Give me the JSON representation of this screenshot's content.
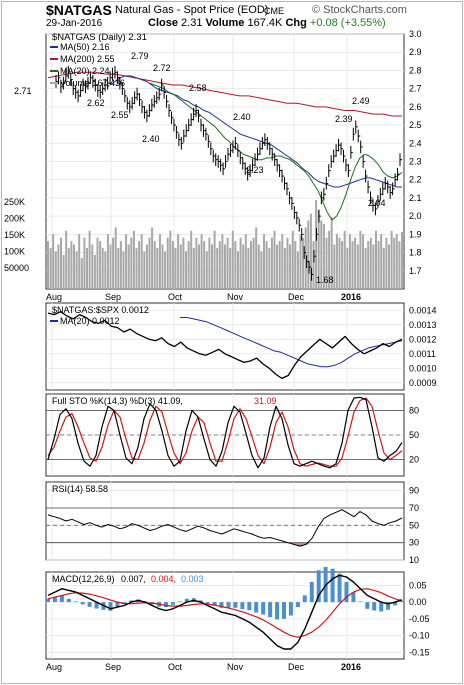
{
  "header": {
    "symbol": "$NATGAS",
    "name": "Natural Gas - Spot Price (EOD)",
    "exchange": "CME",
    "copyright": "© StockCharts.com",
    "date": "29-Jan-2016",
    "close_label": "Close",
    "close": "2.31",
    "volume_label": "Volume",
    "volume": "167.4K",
    "chg_label": "Chg",
    "chg": "+0.08 (+3.55%)"
  },
  "months": [
    "Aug",
    "Sep",
    "Oct",
    "Nov",
    "Dec",
    "2016"
  ],
  "colors": {
    "price": "#000000",
    "ma50": "#1f2f99",
    "ma200": "#b0192c",
    "ma20": "#1f6f1f",
    "volume": "#a8a8a8",
    "k": "#000000",
    "d": "#d01818",
    "hist": "#4a90d0",
    "rsi_fill": "#b07070",
    "grid": "#e4e4e4"
  },
  "chart_data": [
    {
      "id": "price",
      "type": "line",
      "title": "$NATGAS (Daily) 2.31",
      "ylim": [
        1.6,
        3.0
      ],
      "ticks": [
        "3.0",
        "2.9",
        "2.8",
        "2.7",
        "2.6",
        "2.5",
        "2.4",
        "2.3",
        "2.2",
        "2.1",
        "2.0",
        "1.9",
        "1.8",
        "1.7"
      ],
      "legend": [
        {
          "name": "MA(50)",
          "value": "2.16"
        },
        {
          "name": "MA(200)",
          "value": "2.55"
        },
        {
          "name": "MA(20)",
          "value": "2.24"
        },
        {
          "name": "Volume",
          "value": "167,436"
        }
      ],
      "series": [
        {
          "name": "$NATGAS",
          "values": [
            2.74,
            2.76,
            2.71,
            2.73,
            2.77,
            2.79,
            2.75,
            2.7,
            2.68,
            2.66,
            2.69,
            2.72,
            2.71,
            2.73,
            2.76,
            2.74,
            2.72,
            2.69,
            2.68,
            2.7,
            2.72,
            2.73,
            2.76,
            2.78,
            2.79,
            2.76,
            2.73,
            2.7,
            2.66,
            2.62,
            2.6,
            2.62,
            2.65,
            2.67,
            2.64,
            2.6,
            2.57,
            2.55,
            2.58,
            2.61,
            2.63,
            2.65,
            2.67,
            2.72,
            2.68,
            2.63,
            2.58,
            2.54,
            2.5,
            2.46,
            2.42,
            2.4,
            2.44,
            2.47,
            2.5,
            2.53,
            2.56,
            2.58,
            2.55,
            2.5,
            2.47,
            2.45,
            2.41,
            2.37,
            2.33,
            2.31,
            2.3,
            2.28,
            2.26,
            2.3,
            2.34,
            2.36,
            2.38,
            2.4,
            2.36,
            2.32,
            2.29,
            2.26,
            2.23,
            2.25,
            2.28,
            2.31,
            2.34,
            2.37,
            2.4,
            2.42,
            2.4,
            2.37,
            2.34,
            2.31,
            2.28,
            2.25,
            2.22,
            2.18,
            2.15,
            2.1,
            2.07,
            2.02,
            1.99,
            1.95,
            1.9,
            1.8,
            1.75,
            1.72,
            1.68,
            1.78,
            1.9,
            2.0,
            2.1,
            2.12,
            2.18,
            2.25,
            2.3,
            2.33,
            2.36,
            2.39,
            2.37,
            2.33,
            2.28,
            2.25,
            2.35,
            2.45,
            2.49,
            2.44,
            2.38,
            2.3,
            2.22,
            2.16,
            2.1,
            2.06,
            2.04,
            2.08,
            2.12,
            2.15,
            2.18,
            2.16,
            2.13,
            2.15,
            2.2,
            2.23,
            2.31
          ]
        },
        {
          "name": "MA(50)",
          "values": [
            2.72,
            2.74,
            2.76,
            2.77,
            2.77,
            2.76,
            2.75,
            2.74,
            2.72,
            2.7,
            2.69,
            2.68,
            2.67,
            2.66,
            2.64,
            2.63,
            2.61,
            2.6,
            2.58,
            2.57,
            2.55,
            2.53,
            2.51,
            2.49,
            2.47,
            2.45,
            2.44,
            2.43,
            2.42,
            2.41,
            2.4,
            2.39,
            2.37,
            2.35,
            2.33,
            2.31,
            2.29,
            2.26,
            2.24,
            2.21,
            2.19,
            2.18,
            2.17,
            2.16,
            2.16,
            2.17,
            2.18,
            2.19,
            2.2,
            2.21,
            2.21,
            2.2,
            2.19,
            2.18,
            2.17,
            2.16,
            2.16
          ]
        },
        {
          "name": "MA(200)",
          "values": [
            2.76,
            2.77,
            2.78,
            2.79,
            2.79,
            2.79,
            2.78,
            2.78,
            2.77,
            2.76,
            2.75,
            2.74,
            2.73,
            2.72,
            2.72,
            2.71,
            2.7,
            2.69,
            2.68,
            2.67,
            2.66,
            2.66,
            2.65,
            2.64,
            2.63,
            2.62,
            2.62,
            2.61,
            2.6,
            2.6,
            2.59,
            2.58,
            2.58,
            2.57,
            2.56,
            2.56,
            2.55,
            2.55
          ]
        },
        {
          "name": "MA(20)",
          "values": [
            2.73,
            2.72,
            2.71,
            2.7,
            2.68,
            2.67,
            2.65,
            2.63,
            2.61,
            2.59,
            2.57,
            2.55,
            2.53,
            2.51,
            2.49,
            2.46,
            2.43,
            2.41,
            2.38,
            2.36,
            2.34,
            2.33,
            2.32,
            2.31,
            2.31,
            2.32,
            2.32,
            2.33,
            2.33,
            2.32,
            2.31,
            2.29,
            2.27,
            2.25,
            2.22,
            2.18,
            2.14,
            2.08,
            2.02,
            1.98,
            2.0,
            2.05,
            2.12,
            2.2,
            2.27,
            2.32,
            2.34,
            2.33,
            2.31,
            2.28,
            2.24,
            2.22,
            2.21,
            2.22,
            2.24
          ]
        },
        {
          "name": "Volume",
          "values": [
            140,
            120,
            160,
            110,
            130,
            150,
            100,
            170,
            120,
            140,
            130,
            110,
            160,
            90,
            150,
            120,
            170,
            130,
            100,
            150,
            140,
            120,
            110,
            160,
            130,
            150,
            180,
            120,
            140,
            110,
            160,
            130,
            150,
            170,
            120,
            140,
            160,
            110,
            130,
            150,
            180,
            140,
            120,
            160,
            130,
            110,
            150,
            170,
            140,
            120,
            160,
            130,
            150,
            110,
            140,
            170,
            120,
            150,
            130,
            160,
            140,
            110,
            150,
            130,
            170,
            120,
            140,
            160,
            130,
            150,
            120,
            170,
            140,
            110,
            150,
            130,
            160,
            120,
            140,
            150,
            180,
            130,
            110,
            160,
            140,
            120,
            150,
            170,
            130,
            140,
            160,
            120,
            150,
            130,
            170,
            140,
            110,
            160,
            150,
            180,
            200,
            220,
            140,
            260,
            230,
            200,
            190,
            150,
            170,
            210,
            130,
            160,
            150,
            140,
            170,
            120,
            160,
            140,
            150,
            130,
            170,
            160,
            120,
            140,
            150,
            130,
            170,
            140,
            160,
            120,
            150,
            130,
            170,
            150,
            160,
            140,
            167
          ]
        }
      ],
      "annotations": [
        "2.71",
        "2.79",
        "2.72",
        "2.62",
        "2.55",
        "2.58",
        "2.40",
        "2.40",
        "2.23",
        "2.39",
        "2.49",
        "2.04",
        "1.68"
      ],
      "volume_ticks": [
        "250K",
        "200K",
        "150K",
        "100K",
        "50000"
      ]
    },
    {
      "id": "ratio",
      "type": "line",
      "title": "$NATGAS:$SPX 0.0012",
      "ylim": [
        0.00085,
        0.00145
      ],
      "ticks": [
        "0.0014",
        "0.0013",
        "0.0012",
        "0.0011",
        "0.0010",
        "0.0009"
      ],
      "legend": [
        {
          "name": "MA(20)",
          "value": "0.0012"
        }
      ],
      "series": [
        {
          "name": "$NATGAS:$SPX",
          "values": [
            0.00138,
            0.00137,
            0.00139,
            0.00136,
            0.00134,
            0.00137,
            0.00135,
            0.00132,
            0.00131,
            0.00133,
            0.00129,
            0.00128,
            0.00125,
            0.00127,
            0.00124,
            0.00122,
            0.0012,
            0.00119,
            0.00121,
            0.00117,
            0.00115,
            0.00118,
            0.00114,
            0.00112,
            0.0011,
            0.00109,
            0.00111,
            0.00113,
            0.0011,
            0.00108,
            0.00106,
            0.00104,
            0.00105,
            0.00107,
            0.00103,
            0.001,
            0.00096,
            0.00093,
            0.00095,
            0.00102,
            0.00108,
            0.00112,
            0.00116,
            0.0012,
            0.00117,
            0.00114,
            0.00118,
            0.00122,
            0.00117,
            0.00113,
            0.0011,
            0.00112,
            0.00114,
            0.00117,
            0.00115,
            0.00118,
            0.0012
          ]
        },
        {
          "name": "MA(20)",
          "values": [
            0.00135,
            0.00135,
            0.00134,
            0.00133,
            0.00132,
            0.0013,
            0.00128,
            0.00126,
            0.00124,
            0.00122,
            0.0012,
            0.00118,
            0.00116,
            0.00114,
            0.00112,
            0.00111,
            0.00109,
            0.00107,
            0.00105,
            0.00103,
            0.00102,
            0.00101,
            0.00101,
            0.00102,
            0.00104,
            0.00107,
            0.0011,
            0.00112,
            0.00114,
            0.00115,
            0.00116,
            0.00117,
            0.00118,
            0.00119
          ]
        }
      ]
    },
    {
      "id": "stoch",
      "type": "line",
      "title": "Full STO %K(14,3) %D(3)",
      "ylim": [
        0,
        100
      ],
      "ticks": [
        "80",
        "50",
        "20"
      ],
      "legend": [
        {
          "name": "%K",
          "value": "41.09"
        },
        {
          "name": "%D",
          "value": "31.09"
        }
      ],
      "series": [
        {
          "name": "%K",
          "values": [
            20,
            45,
            75,
            82,
            70,
            40,
            18,
            12,
            25,
            60,
            85,
            80,
            50,
            22,
            15,
            35,
            70,
            88,
            80,
            55,
            25,
            12,
            18,
            55,
            80,
            72,
            45,
            20,
            12,
            30,
            65,
            85,
            78,
            52,
            25,
            10,
            22,
            60,
            85,
            70,
            38,
            15,
            12,
            15,
            18,
            15,
            12,
            10,
            15,
            40,
            80,
            95,
            96,
            93,
            60,
            22,
            18,
            25,
            30,
            41
          ]
        },
        {
          "name": "%D",
          "values": [
            25,
            35,
            55,
            72,
            76,
            60,
            40,
            22,
            18,
            35,
            62,
            80,
            72,
            45,
            22,
            20,
            40,
            68,
            85,
            78,
            52,
            28,
            15,
            28,
            55,
            72,
            65,
            40,
            18,
            18,
            42,
            70,
            82,
            70,
            48,
            25,
            15,
            35,
            65,
            78,
            60,
            32,
            15,
            12,
            14,
            16,
            14,
            12,
            12,
            22,
            48,
            78,
            92,
            95,
            85,
            55,
            28,
            20,
            25,
            31
          ]
        }
      ]
    },
    {
      "id": "rsi",
      "type": "line",
      "title": "RSI(14) 58.58",
      "ylim": [
        10,
        100
      ],
      "ticks": [
        "90",
        "70",
        "50",
        "30",
        "10"
      ],
      "series": [
        {
          "name": "RSI(14)",
          "values": [
            62,
            60,
            58,
            55,
            57,
            54,
            51,
            53,
            50,
            48,
            51,
            49,
            46,
            48,
            52,
            50,
            47,
            44,
            46,
            49,
            51,
            48,
            45,
            43,
            46,
            49,
            47,
            44,
            42,
            40,
            43,
            46,
            44,
            42,
            40,
            37,
            35,
            36,
            34,
            32,
            30,
            28,
            26,
            28,
            35,
            48,
            58,
            62,
            65,
            68,
            64,
            60,
            66,
            62,
            55,
            52,
            50,
            53,
            55,
            58.58
          ]
        }
      ]
    },
    {
      "id": "macd",
      "type": "line",
      "title": "MACD(12,26,9)",
      "ylim": [
        -0.17,
        0.09
      ],
      "ticks": [
        "0.05",
        "0.00",
        "-0.05",
        "-0.10",
        "-0.15"
      ],
      "legend": [
        {
          "name": "MACD",
          "value": "0.007"
        },
        {
          "name": "Signal",
          "value": "0.004"
        },
        {
          "name": "Histogram",
          "value": "0.003"
        }
      ],
      "series": [
        {
          "name": "MACD",
          "values": [
            0.02,
            0.03,
            0.04,
            0.035,
            0.03,
            0.02,
            0.01,
            0.0,
            -0.01,
            -0.02,
            -0.015,
            -0.01,
            0.0,
            0.005,
            0.0,
            -0.01,
            -0.02,
            -0.025,
            -0.02,
            -0.01,
            0.0,
            0.005,
            0.0,
            -0.01,
            -0.02,
            -0.03,
            -0.035,
            -0.04,
            -0.05,
            -0.06,
            -0.075,
            -0.09,
            -0.11,
            -0.13,
            -0.14,
            -0.14,
            -0.12,
            -0.08,
            -0.03,
            0.02,
            0.05,
            0.07,
            0.08,
            0.075,
            0.06,
            0.04,
            0.02,
            0.01,
            0.0,
            -0.005,
            0.0,
            0.007
          ]
        },
        {
          "name": "Signal",
          "values": [
            0.01,
            0.015,
            0.02,
            0.025,
            0.028,
            0.027,
            0.024,
            0.019,
            0.013,
            0.006,
            0.0,
            -0.004,
            -0.005,
            -0.003,
            -0.002,
            -0.003,
            -0.006,
            -0.01,
            -0.012,
            -0.012,
            -0.01,
            -0.007,
            -0.005,
            -0.006,
            -0.009,
            -0.013,
            -0.018,
            -0.023,
            -0.029,
            -0.036,
            -0.044,
            -0.053,
            -0.065,
            -0.078,
            -0.09,
            -0.1,
            -0.105,
            -0.1,
            -0.09,
            -0.075,
            -0.055,
            -0.03,
            -0.005,
            0.015,
            0.03,
            0.038,
            0.04,
            0.035,
            0.028,
            0.018,
            0.01,
            0.004
          ]
        },
        {
          "name": "Histogram",
          "values": [
            0.01,
            0.015,
            0.02,
            0.01,
            0.002,
            -0.007,
            -0.014,
            -0.019,
            -0.023,
            -0.026,
            -0.015,
            -0.006,
            0.005,
            0.008,
            0.002,
            -0.007,
            -0.014,
            -0.015,
            -0.008,
            0.002,
            0.01,
            0.012,
            0.005,
            -0.004,
            -0.011,
            -0.017,
            -0.017,
            -0.017,
            -0.021,
            -0.024,
            -0.031,
            -0.037,
            -0.045,
            -0.052,
            -0.05,
            -0.04,
            -0.015,
            0.02,
            0.06,
            0.095,
            0.105,
            0.1,
            0.085,
            0.06,
            0.03,
            0.002,
            -0.02,
            -0.025,
            -0.028,
            -0.023,
            -0.01,
            0.003
          ]
        }
      ]
    }
  ]
}
